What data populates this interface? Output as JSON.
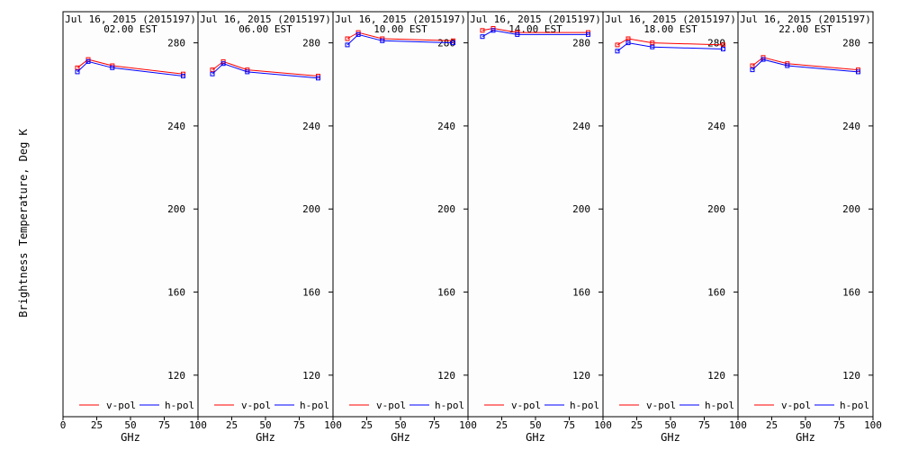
{
  "chart_data": {
    "type": "line",
    "ylabel": "Brightness Temperature, Deg K",
    "xlabel": "GHz",
    "xlim": [
      0,
      100
    ],
    "ylim": [
      100,
      295
    ],
    "x_ticks": [
      0,
      25,
      50,
      75,
      100
    ],
    "y_ticks": [
      120,
      160,
      200,
      240,
      280
    ],
    "legend": [
      "v-pol",
      "h-pol"
    ],
    "colors": {
      "v-pol": "#ff0000",
      "h-pol": "#0000ff"
    },
    "x": [
      10.65,
      18.7,
      36.5,
      89
    ],
    "panels": [
      {
        "title_line1": "Jul 16, 2015 (2015197)",
        "title_line2": "02.00 EST",
        "series": [
          {
            "name": "v-pol",
            "values": [
              268,
              272,
              269,
              265
            ]
          },
          {
            "name": "h-pol",
            "values": [
              266,
              271,
              268,
              264
            ]
          }
        ]
      },
      {
        "title_line1": "Jul 16, 2015 (2015197)",
        "title_line2": "06.00 EST",
        "series": [
          {
            "name": "v-pol",
            "values": [
              267,
              271,
              267,
              264
            ]
          },
          {
            "name": "h-pol",
            "values": [
              265,
              270,
              266,
              263
            ]
          }
        ]
      },
      {
        "title_line1": "Jul 16, 2015 (2015197)",
        "title_line2": "10.00 EST",
        "series": [
          {
            "name": "v-pol",
            "values": [
              282,
              285,
              282,
              281
            ]
          },
          {
            "name": "h-pol",
            "values": [
              279,
              284,
              281,
              280
            ]
          }
        ]
      },
      {
        "title_line1": "Jul 16, 2015 (2015197)",
        "title_line2": "14.00 EST",
        "series": [
          {
            "name": "v-pol",
            "values": [
              286,
              287,
              285,
              285
            ]
          },
          {
            "name": "h-pol",
            "values": [
              283,
              286,
              284,
              284
            ]
          }
        ]
      },
      {
        "title_line1": "Jul 16, 2015 (2015197)",
        "title_line2": "18.00 EST",
        "series": [
          {
            "name": "v-pol",
            "values": [
              279,
              282,
              280,
              279
            ]
          },
          {
            "name": "h-pol",
            "values": [
              276,
              280,
              278,
              277
            ]
          }
        ]
      },
      {
        "title_line1": "Jul 16, 2015 (2015197)",
        "title_line2": "22.00 EST",
        "series": [
          {
            "name": "v-pol",
            "values": [
              269,
              273,
              270,
              267
            ]
          },
          {
            "name": "h-pol",
            "values": [
              267,
              272,
              269,
              266
            ]
          }
        ]
      }
    ]
  }
}
